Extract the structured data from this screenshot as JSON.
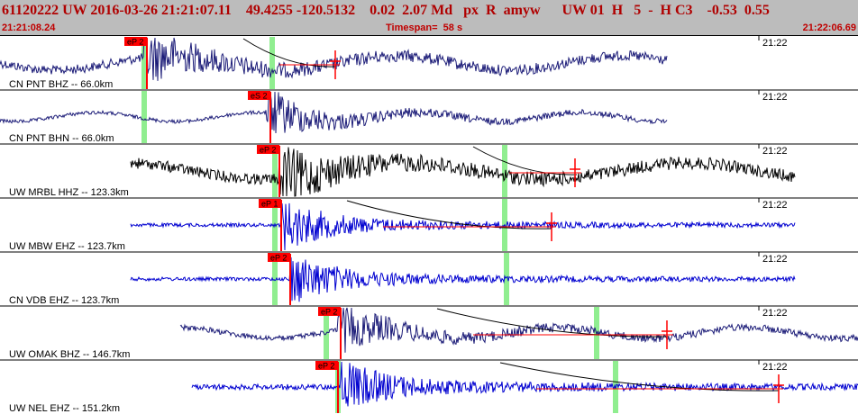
{
  "header": {
    "event_id": "61120222",
    "network": "UW",
    "origin_date": "2016-03-26",
    "origin_time": "21:21:07.11",
    "latitude": "49.4255",
    "longitude": "-120.5132",
    "depth": "0.02",
    "magnitude": "2.07",
    "magnitude_type": "Md",
    "flags": "px  R  amyw",
    "solution_source": "UW 01  H   5  -  H C3",
    "residual_1": "-0.53",
    "residual_2": "0.55",
    "start_time": "21:21:08.24",
    "timespan_label": "Timespan=  58 s",
    "end_time": "21:22:06.69"
  },
  "colors": {
    "header_bg": "#bcbcbc",
    "header_text": "#b00000",
    "pick_marker": "#ff0000",
    "pick_label_bg": "#ff0000",
    "pick_label_text": "#000000",
    "predicted_arrival": "#90ee90",
    "coda_fit_curve": "#000000",
    "trace_navy": "#1c1c78",
    "trace_black": "#000000",
    "trace_blue": "#0000d0",
    "separator": "#000000"
  },
  "channels": [
    {
      "id": "pnt-bhz",
      "label": "CN PNT BHZ -- 66.0km",
      "time_tick": "21:22",
      "pick": "eP 2",
      "trace_color": "#1c1c78",
      "icon": "waveform-trace"
    },
    {
      "id": "pnt-bhn",
      "label": "CN PNT BHN -- 66.0km",
      "time_tick": "21:22",
      "pick": "eS 2",
      "trace_color": "#1c1c78",
      "icon": "waveform-trace"
    },
    {
      "id": "mrbl-hhz",
      "label": "UW MRBL HHZ -- 123.3km",
      "time_tick": "21:22",
      "pick": "eP 2",
      "trace_color": "#000000",
      "icon": "waveform-trace"
    },
    {
      "id": "mbw-ehz",
      "label": "UW MBW EHZ -- 123.7km",
      "time_tick": "21:22",
      "pick": "eP 1",
      "trace_color": "#0000d0",
      "icon": "waveform-trace"
    },
    {
      "id": "vdb-ehz",
      "label": "CN VDB EHZ -- 123.7km",
      "time_tick": "21:22",
      "pick": "eP 2",
      "trace_color": "#0000d0",
      "icon": "waveform-trace"
    },
    {
      "id": "omak-bhz",
      "label": "UW OMAK BHZ -- 146.7km",
      "time_tick": "21:22",
      "pick": "eP 2",
      "trace_color": "#1c1c78",
      "icon": "waveform-trace"
    },
    {
      "id": "nel-ehz",
      "label": "UW NEL EHZ -- 151.2km",
      "time_tick": "21:22",
      "pick": "eP 2",
      "trace_color": "#0000d0",
      "icon": "waveform-trace"
    }
  ]
}
